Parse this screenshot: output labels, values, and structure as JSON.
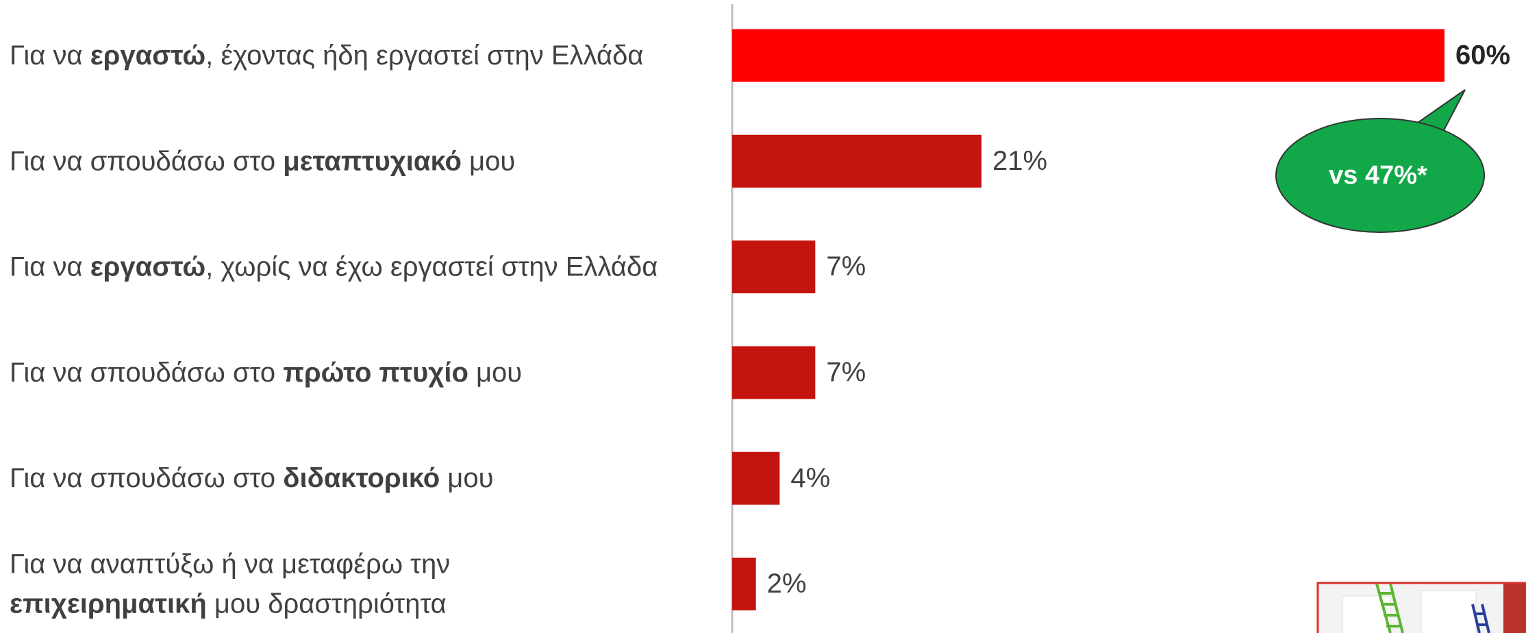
{
  "chart_data": {
    "type": "bar",
    "orientation": "horizontal",
    "categories": [
      [
        [
          {
            "text": "Για να ",
            "bold": false
          },
          {
            "text": "εργαστώ",
            "bold": true
          },
          {
            "text": ", έχοντας ήδη εργαστεί στην Ελλάδα",
            "bold": false
          }
        ]
      ],
      [
        [
          {
            "text": "Για να σπουδάσω στο ",
            "bold": false
          },
          {
            "text": "μεταπτυχιακό",
            "bold": true
          },
          {
            "text": " μου",
            "bold": false
          }
        ]
      ],
      [
        [
          {
            "text": "Για να ",
            "bold": false
          },
          {
            "text": "εργαστώ",
            "bold": true
          },
          {
            "text": ", χωρίς να έχω εργαστεί στην Ελλάδα",
            "bold": false
          }
        ]
      ],
      [
        [
          {
            "text": "Για να σπουδάσω στο ",
            "bold": false
          },
          {
            "text": "πρώτο πτυχίο",
            "bold": true
          },
          {
            "text": " μου",
            "bold": false
          }
        ]
      ],
      [
        [
          {
            "text": "Για να σπουδάσω στο ",
            "bold": false
          },
          {
            "text": "διδακτορικό",
            "bold": true
          },
          {
            "text": " μου",
            "bold": false
          }
        ]
      ],
      [
        [
          {
            "text": "Για να αναπτύξω ή να μεταφέρω την",
            "bold": false
          }
        ],
        [
          {
            "text": "επιχειρηματική",
            "bold": true
          },
          {
            "text": " μου δραστηριότητα",
            "bold": false
          }
        ]
      ]
    ],
    "values": [
      60,
      21,
      7,
      7,
      4,
      2
    ],
    "value_labels": [
      "60%",
      "21%",
      "7%",
      "7%",
      "4%",
      "2%"
    ],
    "colors": [
      "#ff0000",
      "#c4140f",
      "#c4140f",
      "#c4140f",
      "#c4140f",
      "#c4140f"
    ],
    "bold_value_labels": [
      true,
      false,
      false,
      false,
      false,
      false
    ],
    "annotation": {
      "text": "vs 47%*",
      "color": "#12a84a"
    }
  }
}
